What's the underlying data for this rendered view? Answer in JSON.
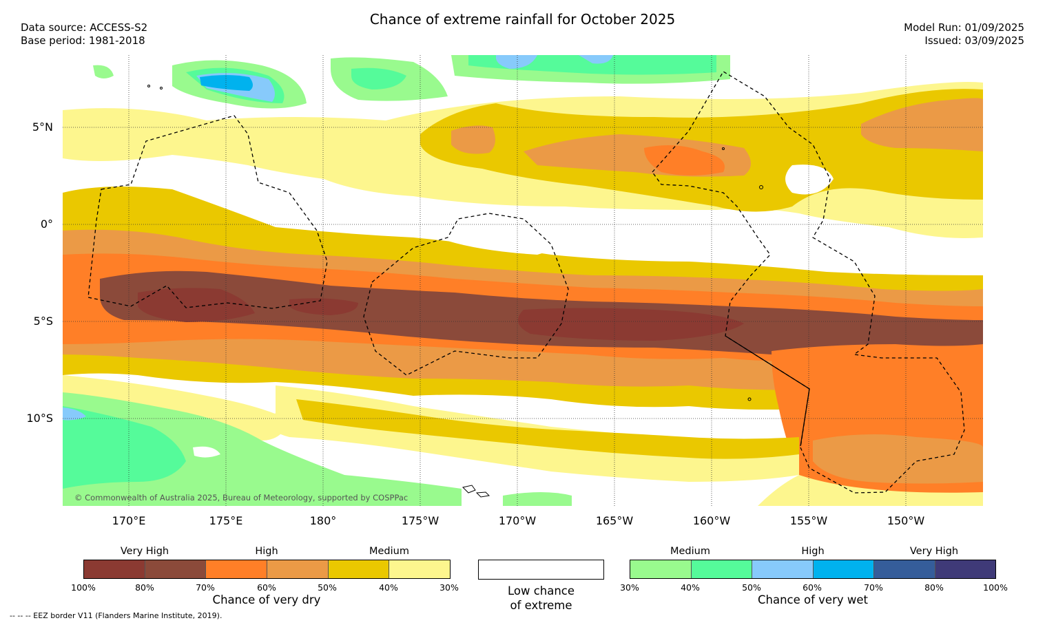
{
  "title": "Chance of extreme rainfall for October 2025",
  "data_source": "Data source: ACCESS-S2",
  "base_period": "Base period: 1981-2018",
  "model_run": "Model Run: 01/09/2025",
  "issued": "Issued: 03/09/2025",
  "lat_labels": [
    "5°N",
    "0°",
    "5°S",
    "10°S"
  ],
  "lon_labels": [
    "170°E",
    "175°E",
    "180°",
    "175°W",
    "170°W",
    "165°W",
    "160°W",
    "155°W",
    "150°W"
  ],
  "copyright": "© Commonwealth of Australia 2025, Bureau of Meteorology, supported by COSPPac",
  "dry_legend": {
    "categories": [
      "Very High",
      "High",
      "Medium"
    ],
    "colors": [
      "#8b3a32",
      "#8b4a3a",
      "#ff7f27",
      "#eb9a46",
      "#eac800",
      "#fdf68e"
    ],
    "ticks": [
      "100%",
      "80%",
      "70%",
      "60%",
      "50%",
      "40%",
      "30%"
    ],
    "title": "Chance of very dry"
  },
  "low_chance_label": [
    "Low chance",
    "of extreme"
  ],
  "wet_legend": {
    "categories": [
      "Medium",
      "High",
      "Very High"
    ],
    "colors": [
      "#99fa8e",
      "#55fb9a",
      "#87cafb",
      "#00b2ee",
      "#355d9a",
      "#3f3a78"
    ],
    "ticks": [
      "30%",
      "40%",
      "50%",
      "60%",
      "70%",
      "80%",
      "100%"
    ],
    "title": "Chance of very wet"
  },
  "footnote": "--  --  -- EEZ border V11 (Flanders Marine Institute, 2019)."
}
